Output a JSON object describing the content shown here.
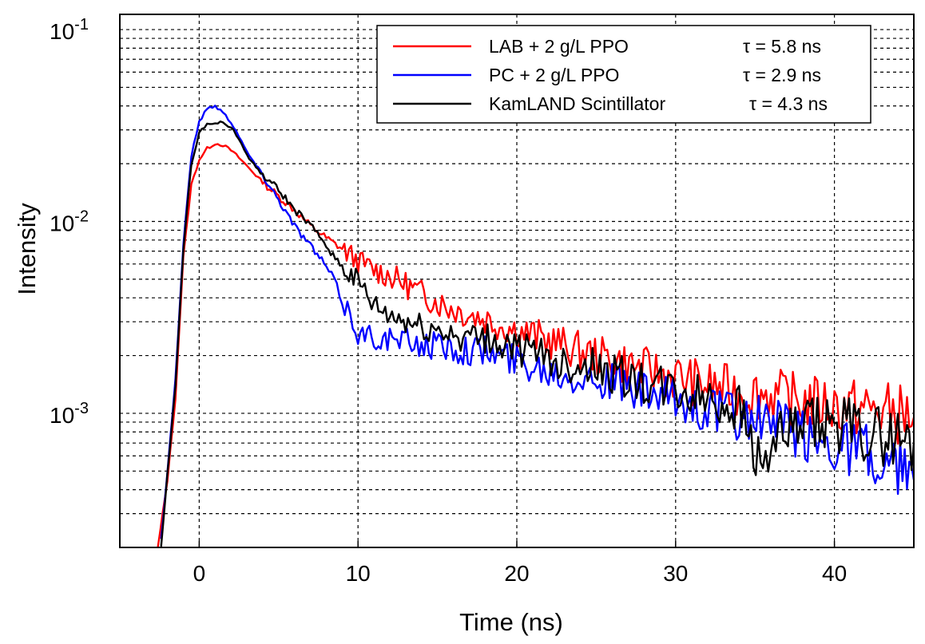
{
  "chart_data": {
    "type": "line",
    "title": "",
    "xlabel": "Time (ns)",
    "ylabel": "Intensity",
    "xlim": [
      -5,
      45
    ],
    "ylim": [
      0.0002,
      0.12
    ],
    "yscale": "log",
    "grid": true,
    "legend_position": "top-right",
    "x_ticks": [
      0,
      10,
      20,
      30,
      40
    ],
    "x_tick_labels": [
      "0",
      "10",
      "20",
      "30",
      "40"
    ],
    "y_ticks": [
      0.1,
      0.01,
      0.001
    ],
    "y_tick_labels": [
      {
        "base": "10",
        "exp": "-1"
      },
      {
        "base": "10",
        "exp": "-2"
      },
      {
        "base": "10",
        "exp": "-3"
      }
    ],
    "series": [
      {
        "name": "LAB + 2 g/L PPO",
        "tau_label": "τ = 5.8 ns",
        "color": "#ff0000",
        "x": [
          -2.6,
          -2.0,
          -1.5,
          -1.0,
          -0.5,
          0.0,
          0.5,
          1.0,
          1.5,
          2.0,
          2.5,
          3.0,
          4.0,
          5.0,
          6.0,
          7.0,
          8.0,
          9.0,
          10.0,
          11.0,
          12.0,
          13.0,
          14.0,
          15.0,
          16.0,
          18.0,
          20.0,
          22.0,
          24.0,
          26.0,
          28.0,
          30.0,
          32.0,
          34.0,
          36.0,
          38.0,
          40.0,
          42.0,
          44.0,
          45.0
        ],
        "y": [
          0.0002,
          0.00045,
          0.0012,
          0.0065,
          0.0155,
          0.021,
          0.024,
          0.0255,
          0.025,
          0.0235,
          0.0215,
          0.0195,
          0.016,
          0.0135,
          0.0115,
          0.0095,
          0.0082,
          0.0072,
          0.0062,
          0.0056,
          0.0052,
          0.0047,
          0.0042,
          0.0038,
          0.0035,
          0.0031,
          0.0027,
          0.0024,
          0.0021,
          0.0019,
          0.0017,
          0.00155,
          0.0014,
          0.0013,
          0.00125,
          0.00115,
          0.0011,
          0.00105,
          0.001,
          0.00095
        ]
      },
      {
        "name": "PC + 2 g/L PPO",
        "tau_label": "τ = 2.9 ns",
        "color": "#0000ff",
        "x": [
          -2.4,
          -2.0,
          -1.5,
          -1.0,
          -0.5,
          0.0,
          0.5,
          1.0,
          1.5,
          2.0,
          2.5,
          3.0,
          4.0,
          5.0,
          6.0,
          7.0,
          8.0,
          8.5,
          9.0,
          9.5,
          10.0,
          11.0,
          12.0,
          14.0,
          16.0,
          18.0,
          20.0,
          22.0,
          24.0,
          26.0,
          28.0,
          30.0,
          32.0,
          34.0,
          36.0,
          38.0,
          40.0,
          42.0,
          43.0,
          44.0,
          45.0
        ],
        "y": [
          0.00022,
          0.0005,
          0.0015,
          0.0075,
          0.022,
          0.033,
          0.039,
          0.04,
          0.037,
          0.033,
          0.028,
          0.023,
          0.0175,
          0.013,
          0.0095,
          0.0075,
          0.0058,
          0.005,
          0.0038,
          0.0033,
          0.0026,
          0.0025,
          0.0024,
          0.0023,
          0.0022,
          0.0021,
          0.0019,
          0.0017,
          0.0016,
          0.00145,
          0.00125,
          0.00115,
          0.00105,
          0.00095,
          0.0009,
          0.00075,
          0.0007,
          0.00065,
          0.0004,
          0.00055,
          0.00045
        ]
      },
      {
        "name": "KamLAND Scintillator",
        "tau_label": "τ = 4.3 ns",
        "color": "#000000",
        "x": [
          -2.4,
          -2.0,
          -1.5,
          -1.0,
          -0.5,
          0.0,
          0.5,
          1.0,
          1.5,
          2.0,
          2.5,
          3.0,
          4.0,
          5.0,
          6.0,
          7.0,
          8.0,
          9.0,
          10.0,
          11.0,
          12.0,
          13.0,
          14.0,
          16.0,
          18.0,
          20.0,
          22.0,
          24.0,
          26.0,
          28.0,
          30.0,
          32.0,
          34.0,
          35.5,
          36.0,
          38.0,
          40.0,
          42.0,
          44.0,
          45.0
        ],
        "y": [
          0.0002,
          0.00048,
          0.0014,
          0.007,
          0.02,
          0.029,
          0.032,
          0.033,
          0.0325,
          0.031,
          0.027,
          0.022,
          0.0175,
          0.0145,
          0.0115,
          0.0095,
          0.0075,
          0.0058,
          0.0048,
          0.0036,
          0.0032,
          0.003,
          0.0028,
          0.0026,
          0.0024,
          0.0022,
          0.0019,
          0.0018,
          0.0016,
          0.0014,
          0.0013,
          0.0012,
          0.0011,
          0.0005,
          0.0007,
          0.00085,
          0.0009,
          0.0008,
          0.00075,
          0.0007
        ]
      }
    ]
  }
}
